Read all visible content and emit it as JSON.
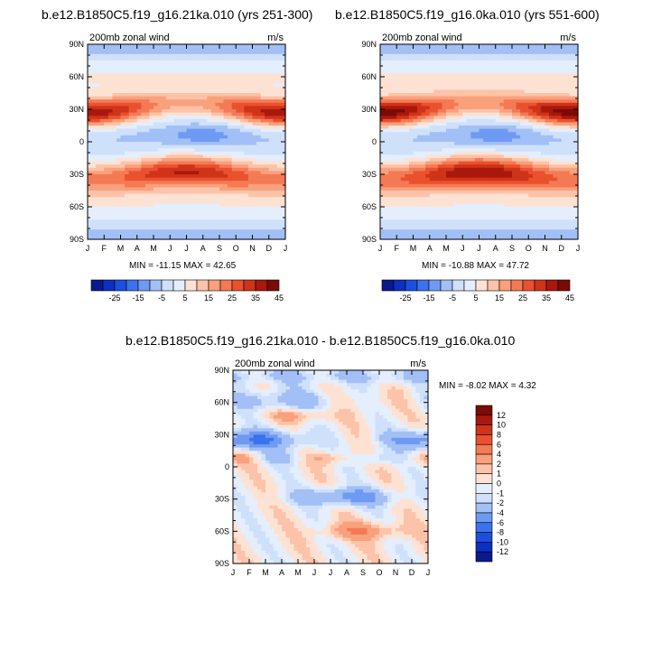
{
  "header": {
    "title_left": "b.e12.B1850C5.f19_g16.21ka.010 (yrs 251-300)",
    "title_right": "b.e12.B1850C5.f19_g16.0ka.010 (yrs 551-600)",
    "title_diff": "b.e12.B1850C5.f19_g16.21ka.010 - b.e12.B1850C5.f19_g16.0ka.010"
  },
  "colors": {
    "blue_ramp": [
      "#0a1a8c",
      "#0d2fc2",
      "#1a4fe0",
      "#3b72ee",
      "#6f9af2",
      "#a2bff6",
      "#cfe0fb",
      "#e4eefc"
    ],
    "red_ramp": [
      "#fde2d4",
      "#fcc3a8",
      "#f9a07c",
      "#f47a55",
      "#e9512f",
      "#cf3318",
      "#a8180d",
      "#7a0b07"
    ]
  },
  "chart_data": [
    {
      "type": "heatmap",
      "title": "b.e12.B1850C5.f19_g16.21ka.010 (yrs 251-300)",
      "panel_label": "200mb zonal wind",
      "units": "m/s",
      "x_ticks": [
        "J",
        "F",
        "M",
        "A",
        "M",
        "J",
        "J",
        "A",
        "S",
        "O",
        "N",
        "D",
        "J"
      ],
      "y_ticks": [
        "90N",
        "60N",
        "30N",
        "0",
        "30S",
        "60S",
        "90S"
      ],
      "ylim": [
        -90,
        90
      ],
      "stats_text": "MIN = -11.15 MAX =  42.65",
      "min": -11.15,
      "max": 42.65,
      "colorbar_labels": [
        "-25",
        "-15",
        "-5",
        "5",
        "15",
        "25",
        "35",
        "45"
      ],
      "features": [
        {
          "kind": "jet",
          "lat": 31,
          "months": [
            0,
            12
          ],
          "peak_m_s": 42.65,
          "season_peak": "Jan"
        },
        {
          "kind": "jet",
          "lat": -31,
          "months": [
            0,
            12
          ],
          "peak_m_s": 38,
          "season_peak": "Jul"
        },
        {
          "kind": "easterly",
          "lat": 8,
          "months": [
            5,
            9
          ],
          "min_m_s": -11.15
        }
      ]
    },
    {
      "type": "heatmap",
      "title": "b.e12.B1850C5.f19_g16.0ka.010 (yrs 551-600)",
      "panel_label": "200mb zonal wind",
      "units": "m/s",
      "x_ticks": [
        "J",
        "F",
        "M",
        "A",
        "M",
        "J",
        "J",
        "A",
        "S",
        "O",
        "N",
        "D",
        "J"
      ],
      "y_ticks": [
        "90N",
        "60N",
        "30N",
        "0",
        "30S",
        "60S",
        "90S"
      ],
      "ylim": [
        -90,
        90
      ],
      "stats_text": "MIN = -10.88 MAX =  47.72",
      "min": -10.88,
      "max": 47.72,
      "colorbar_labels": [
        "-25",
        "-15",
        "-5",
        "5",
        "15",
        "25",
        "35",
        "45"
      ],
      "features": [
        {
          "kind": "jet",
          "lat": 31,
          "months": [
            0,
            12
          ],
          "peak_m_s": 47.72,
          "season_peak": "Jan"
        },
        {
          "kind": "jet",
          "lat": -31,
          "months": [
            0,
            12
          ],
          "peak_m_s": 42,
          "season_peak": "Jul"
        },
        {
          "kind": "easterly",
          "lat": 8,
          "months": [
            5,
            9
          ],
          "min_m_s": -10.88
        }
      ]
    },
    {
      "type": "heatmap",
      "title": "b.e12.B1850C5.f19_g16.21ka.010 - b.e12.B1850C5.f19_g16.0ka.010",
      "panel_label": "200mb zonal wind",
      "units": "m/s",
      "x_ticks": [
        "J",
        "F",
        "M",
        "A",
        "M",
        "J",
        "J",
        "A",
        "S",
        "O",
        "N",
        "D",
        "J"
      ],
      "y_ticks": [
        "90N",
        "60N",
        "30N",
        "0",
        "30S",
        "60S",
        "90S"
      ],
      "ylim": [
        -90,
        90
      ],
      "stats_text": "MIN =  -8.02 MAX =   4.32",
      "min": -8.02,
      "max": 4.32,
      "colorbar_labels": [
        "12",
        "10",
        "8",
        "6",
        "4",
        "2",
        "1",
        "0",
        "-1",
        "-2",
        "-4",
        "-6",
        "-8",
        "-10",
        "-12"
      ]
    }
  ]
}
